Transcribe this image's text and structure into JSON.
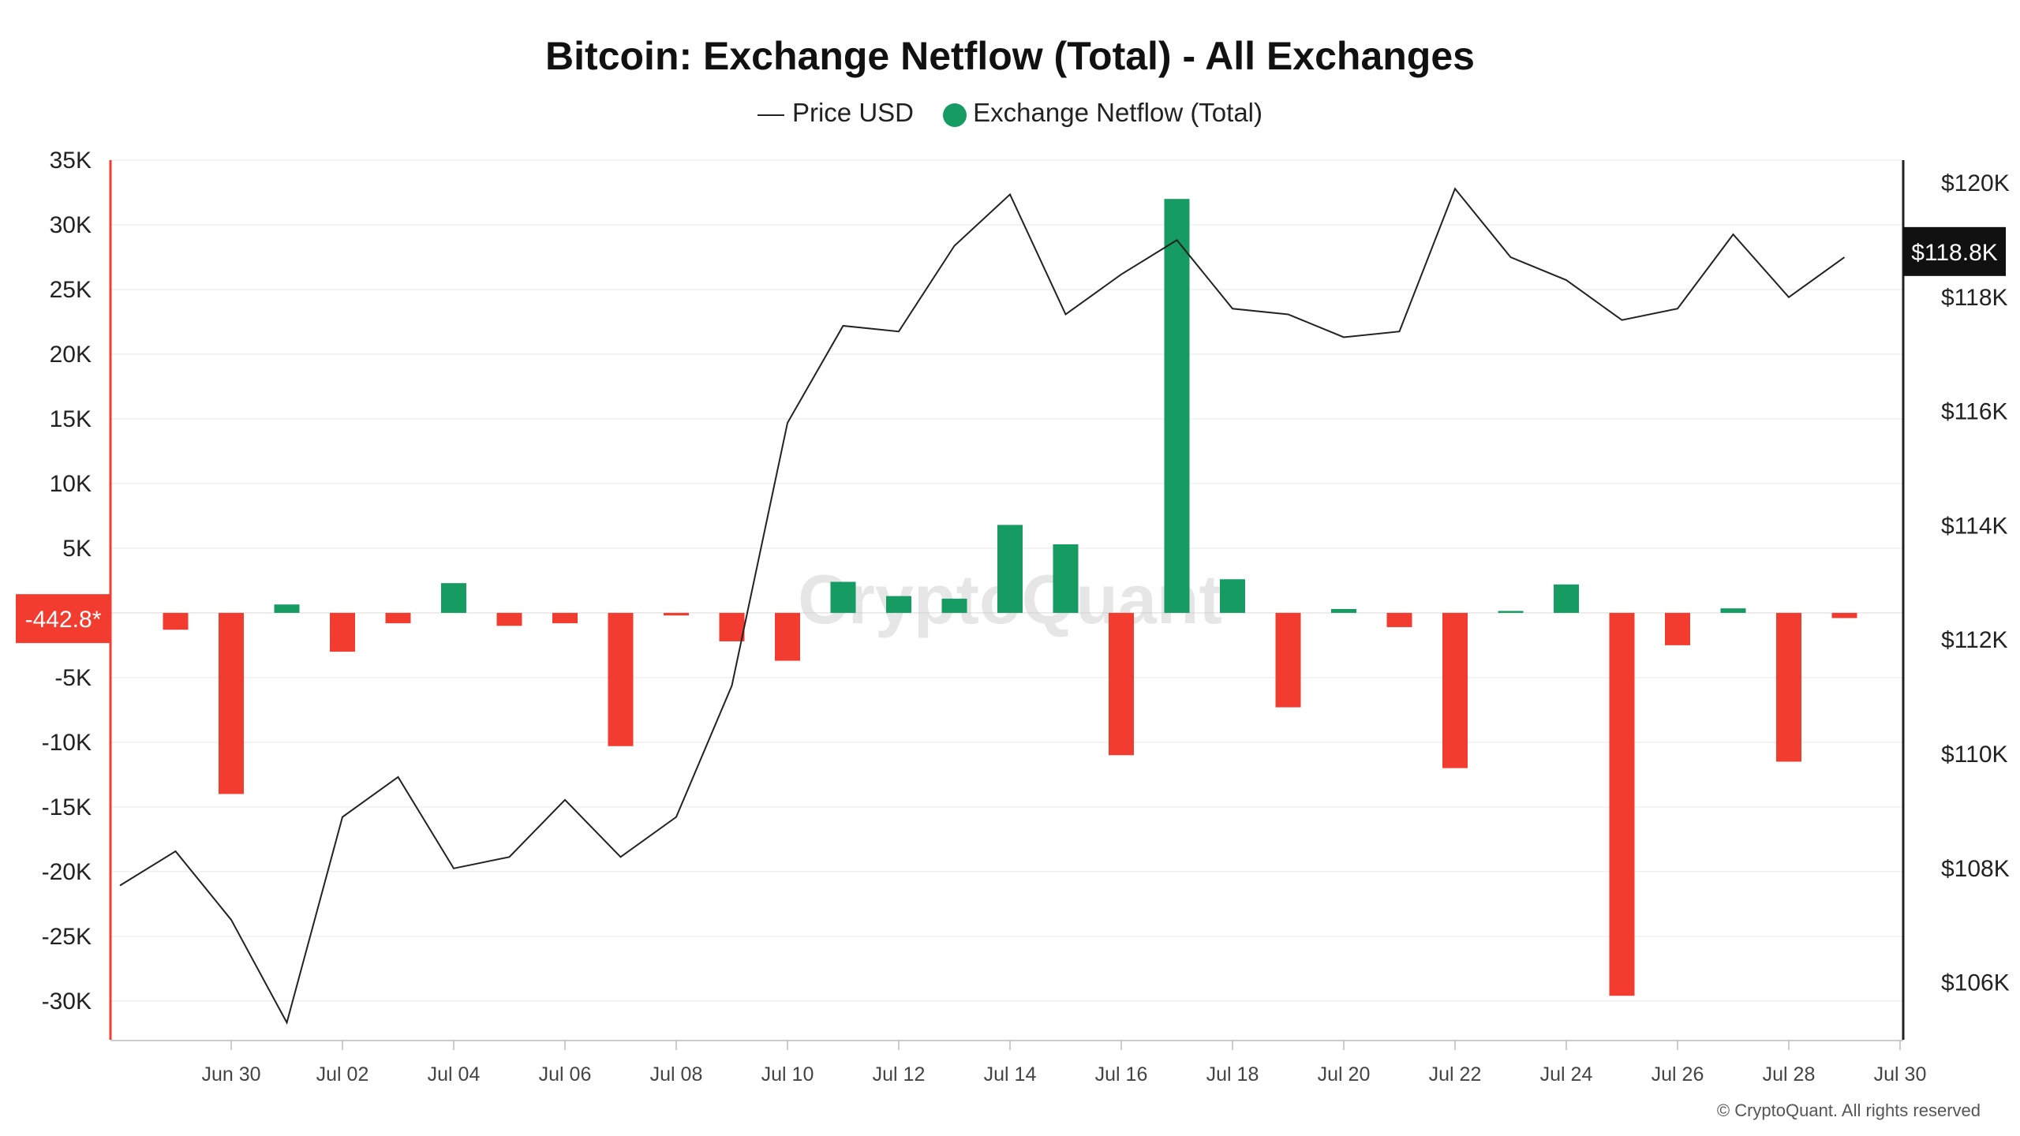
{
  "chart_data": {
    "type": "bar",
    "title": "Bitcoin: Exchange Netflow (Total) - All Exchanges",
    "legend": {
      "placement": "top-center"
    },
    "watermark": "CryptoQuant",
    "credit": "© CryptoQuant. All rights reserved",
    "left_axis": {
      "ylim": [
        -33000,
        35000
      ],
      "ticks": [
        35000,
        30000,
        25000,
        20000,
        15000,
        10000,
        5000,
        -5000,
        -10000,
        -15000,
        -20000,
        -25000,
        -30000
      ],
      "tick_labels": [
        "35K",
        "30K",
        "25K",
        "20K",
        "15K",
        "10K",
        "5K",
        "-5K",
        "-10K",
        "-15K",
        "-20K",
        "-25K",
        "-30K"
      ],
      "marker_value": -442.8,
      "marker_label": "-442.8*"
    },
    "right_axis": {
      "ylim": [
        105000,
        120400
      ],
      "ticks": [
        120000,
        118000,
        116000,
        114000,
        112000,
        110000,
        108000,
        106000
      ],
      "tick_labels": [
        "$120K",
        "$118K",
        "$116K",
        "$114K",
        "$112K",
        "$110K",
        "$108K",
        "$106K"
      ],
      "marker_value": 118800,
      "marker_label": "$118.8K"
    },
    "x_labels": [
      "Jun 30",
      "Jul 02",
      "Jul 04",
      "Jul 06",
      "Jul 08",
      "Jul 10",
      "Jul 12",
      "Jul 14",
      "Jul 16",
      "Jul 18",
      "Jul 20",
      "Jul 22",
      "Jul 24",
      "Jul 26",
      "Jul 28",
      "Jul 30"
    ],
    "x_label_days": [
      2,
      4,
      6,
      8,
      10,
      12,
      14,
      16,
      18,
      20,
      22,
      24,
      26,
      28,
      30,
      32
    ],
    "grid": true,
    "series": [
      {
        "name": "Exchange Netflow (Total)",
        "type": "bar",
        "positive_color": "#169b62",
        "negative_color": "#f23c30",
        "days": [
          1,
          2,
          3,
          4,
          5,
          6,
          7,
          8,
          9,
          10,
          11,
          12,
          13,
          14,
          15,
          16,
          17,
          18,
          19,
          20,
          21,
          22,
          23,
          24,
          25,
          26,
          27,
          28,
          29,
          30,
          31
        ],
        "values": [
          -1300,
          -14000,
          650,
          -3000,
          -800,
          2300,
          -1000,
          -800,
          -10300,
          -200,
          -2200,
          -3700,
          2400,
          1300,
          1100,
          6800,
          5300,
          -11000,
          32000,
          2600,
          -7300,
          300,
          -1100,
          -12000,
          150,
          2200,
          -29600,
          -2500,
          350,
          -11500,
          -400
        ]
      },
      {
        "name": "Price USD",
        "type": "line",
        "color": "#222222",
        "days": [
          0,
          1,
          2,
          3,
          4,
          5,
          6,
          7,
          8,
          9,
          10,
          11,
          12,
          13,
          14,
          15,
          16,
          17,
          18,
          19,
          20,
          21,
          22,
          23,
          24,
          25,
          26,
          27,
          28,
          29,
          30,
          31
        ],
        "values": [
          107700,
          108300,
          107100,
          105300,
          108900,
          109600,
          108000,
          108200,
          109200,
          108200,
          108900,
          111200,
          115800,
          117500,
          117400,
          118900,
          119800,
          117700,
          118400,
          119000,
          117800,
          117700,
          117300,
          117400,
          119900,
          118700,
          118300,
          117600,
          117800,
          119100,
          118000,
          118700
        ]
      }
    ]
  }
}
